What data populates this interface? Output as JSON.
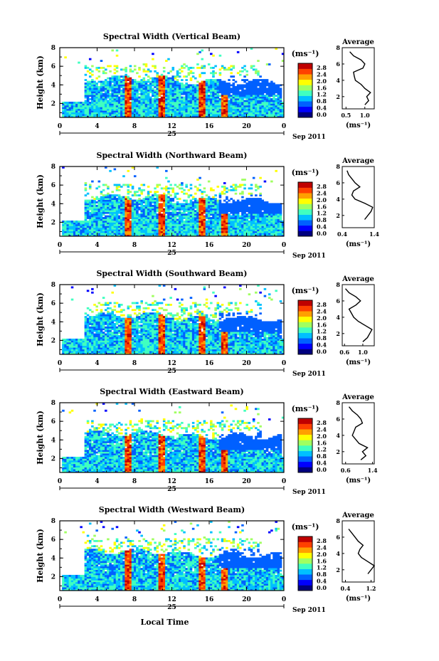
{
  "figure": {
    "colorbar_unit": "(ms⁻¹)",
    "avg_title": "Average",
    "avg_xlabel": "(ms⁻¹)",
    "ylabel": "Height (km)",
    "date_label": "Sep 2011",
    "day_label": "25",
    "bottom_xlabel": "Local Time"
  },
  "colorbar": {
    "ticks": [
      "2.8",
      "2.4",
      "2.0",
      "1.6",
      "1.2",
      "0.8",
      "0.4",
      "0.0"
    ],
    "colors": [
      "#00007f",
      "#0000ff",
      "#0060ff",
      "#00c0ff",
      "#40ffc0",
      "#a0ff60",
      "#ffff00",
      "#ffa000",
      "#ff4000",
      "#c00000"
    ]
  },
  "chart_data": [
    {
      "type": "heatmap",
      "title": "Spectral Width (Vertical Beam)",
      "x_ticks": [
        "0",
        "4",
        "8",
        "12",
        "16",
        "20",
        "0"
      ],
      "y_ticks": [
        "2",
        "4",
        "6",
        "8"
      ],
      "xlim": [
        0,
        24
      ],
      "ylim": [
        0.5,
        8
      ],
      "avg_profile": {
        "x_ticks": [
          "0.5",
          "1.0"
        ],
        "xlim": [
          0.4,
          1.25
        ],
        "height": [
          1,
          1.5,
          2,
          2.5,
          3,
          3.5,
          4,
          4.5,
          5,
          5.5,
          6,
          6.5,
          7,
          7.5
        ],
        "width": [
          1.0,
          1.1,
          1.05,
          1.15,
          1.0,
          0.9,
          0.75,
          0.72,
          0.7,
          0.95,
          1.0,
          0.9,
          0.7,
          0.6
        ]
      }
    },
    {
      "type": "heatmap",
      "title": "Spectral Width (Northward Beam)",
      "x_ticks": [
        "0",
        "4",
        "8",
        "12",
        "16",
        "20",
        "0"
      ],
      "y_ticks": [
        "2",
        "4",
        "6",
        "8"
      ],
      "xlim": [
        0,
        24
      ],
      "ylim": [
        0.5,
        8
      ],
      "avg_profile": {
        "x_ticks": [
          "0.4",
          "1.4"
        ],
        "xlim": [
          0.4,
          1.4
        ],
        "height": [
          1.5,
          2,
          2.5,
          3,
          3.5,
          4,
          4.5,
          5,
          5.5,
          6,
          6.5,
          7,
          7.5
        ],
        "width": [
          1.1,
          1.2,
          1.3,
          1.35,
          1.1,
          0.8,
          0.7,
          0.75,
          0.95,
          0.8,
          0.7,
          0.6,
          0.55
        ]
      }
    },
    {
      "type": "heatmap",
      "title": "Spectral Width (Southward Beam)",
      "x_ticks": [
        "0",
        "4",
        "8",
        "12",
        "16",
        "20",
        "0"
      ],
      "y_ticks": [
        "2",
        "4",
        "6",
        "8"
      ],
      "xlim": [
        0,
        24
      ],
      "ylim": [
        0.5,
        8
      ],
      "avg_profile": {
        "x_ticks": [
          "0.6",
          "1.0"
        ],
        "xlim": [
          0.55,
          1.25
        ],
        "height": [
          1,
          1.5,
          2,
          2.5,
          3,
          3.5,
          4,
          4.5,
          5,
          5.5,
          6,
          6.5,
          7,
          7.5
        ],
        "width": [
          1.0,
          1.1,
          1.15,
          1.2,
          1.05,
          0.9,
          0.8,
          0.75,
          0.7,
          0.85,
          0.95,
          0.85,
          0.7,
          0.62
        ]
      }
    },
    {
      "type": "heatmap",
      "title": "Spectral Width (Eastward Beam)",
      "x_ticks": [
        "0",
        "4",
        "8",
        "12",
        "16",
        "20",
        "0"
      ],
      "y_ticks": [
        "2",
        "4",
        "6",
        "8"
      ],
      "xlim": [
        0,
        24
      ],
      "ylim": [
        0.5,
        8
      ],
      "avg_profile": {
        "x_ticks": [
          "0.6",
          "1.4"
        ],
        "xlim": [
          0.5,
          1.45
        ],
        "height": [
          1,
          1.5,
          2,
          2.5,
          3,
          3.5,
          4,
          4.5,
          5,
          5.5,
          6,
          6.5,
          7,
          7.5
        ],
        "width": [
          1.05,
          1.2,
          1.1,
          1.25,
          1.0,
          0.9,
          0.8,
          0.85,
          0.9,
          1.1,
          1.05,
          0.95,
          0.8,
          0.7
        ]
      }
    },
    {
      "type": "heatmap",
      "title": "Spectral Width (Westward Beam)",
      "x_ticks": [
        "0",
        "4",
        "8",
        "12",
        "16",
        "20",
        "0"
      ],
      "y_ticks": [
        "2",
        "4",
        "6",
        "8"
      ],
      "xlim": [
        0,
        24
      ],
      "ylim": [
        0.5,
        8
      ],
      "avg_profile": {
        "x_ticks": [
          "0.4",
          "1.2"
        ],
        "xlim": [
          0.3,
          1.3
        ],
        "height": [
          1.5,
          2,
          2.5,
          3,
          3.5,
          4,
          4.5,
          5,
          5.5,
          6,
          6.5,
          7
        ],
        "width": [
          1.1,
          1.2,
          1.3,
          1.1,
          0.9,
          0.8,
          0.85,
          0.95,
          0.8,
          0.7,
          0.6,
          0.5
        ]
      }
    }
  ]
}
